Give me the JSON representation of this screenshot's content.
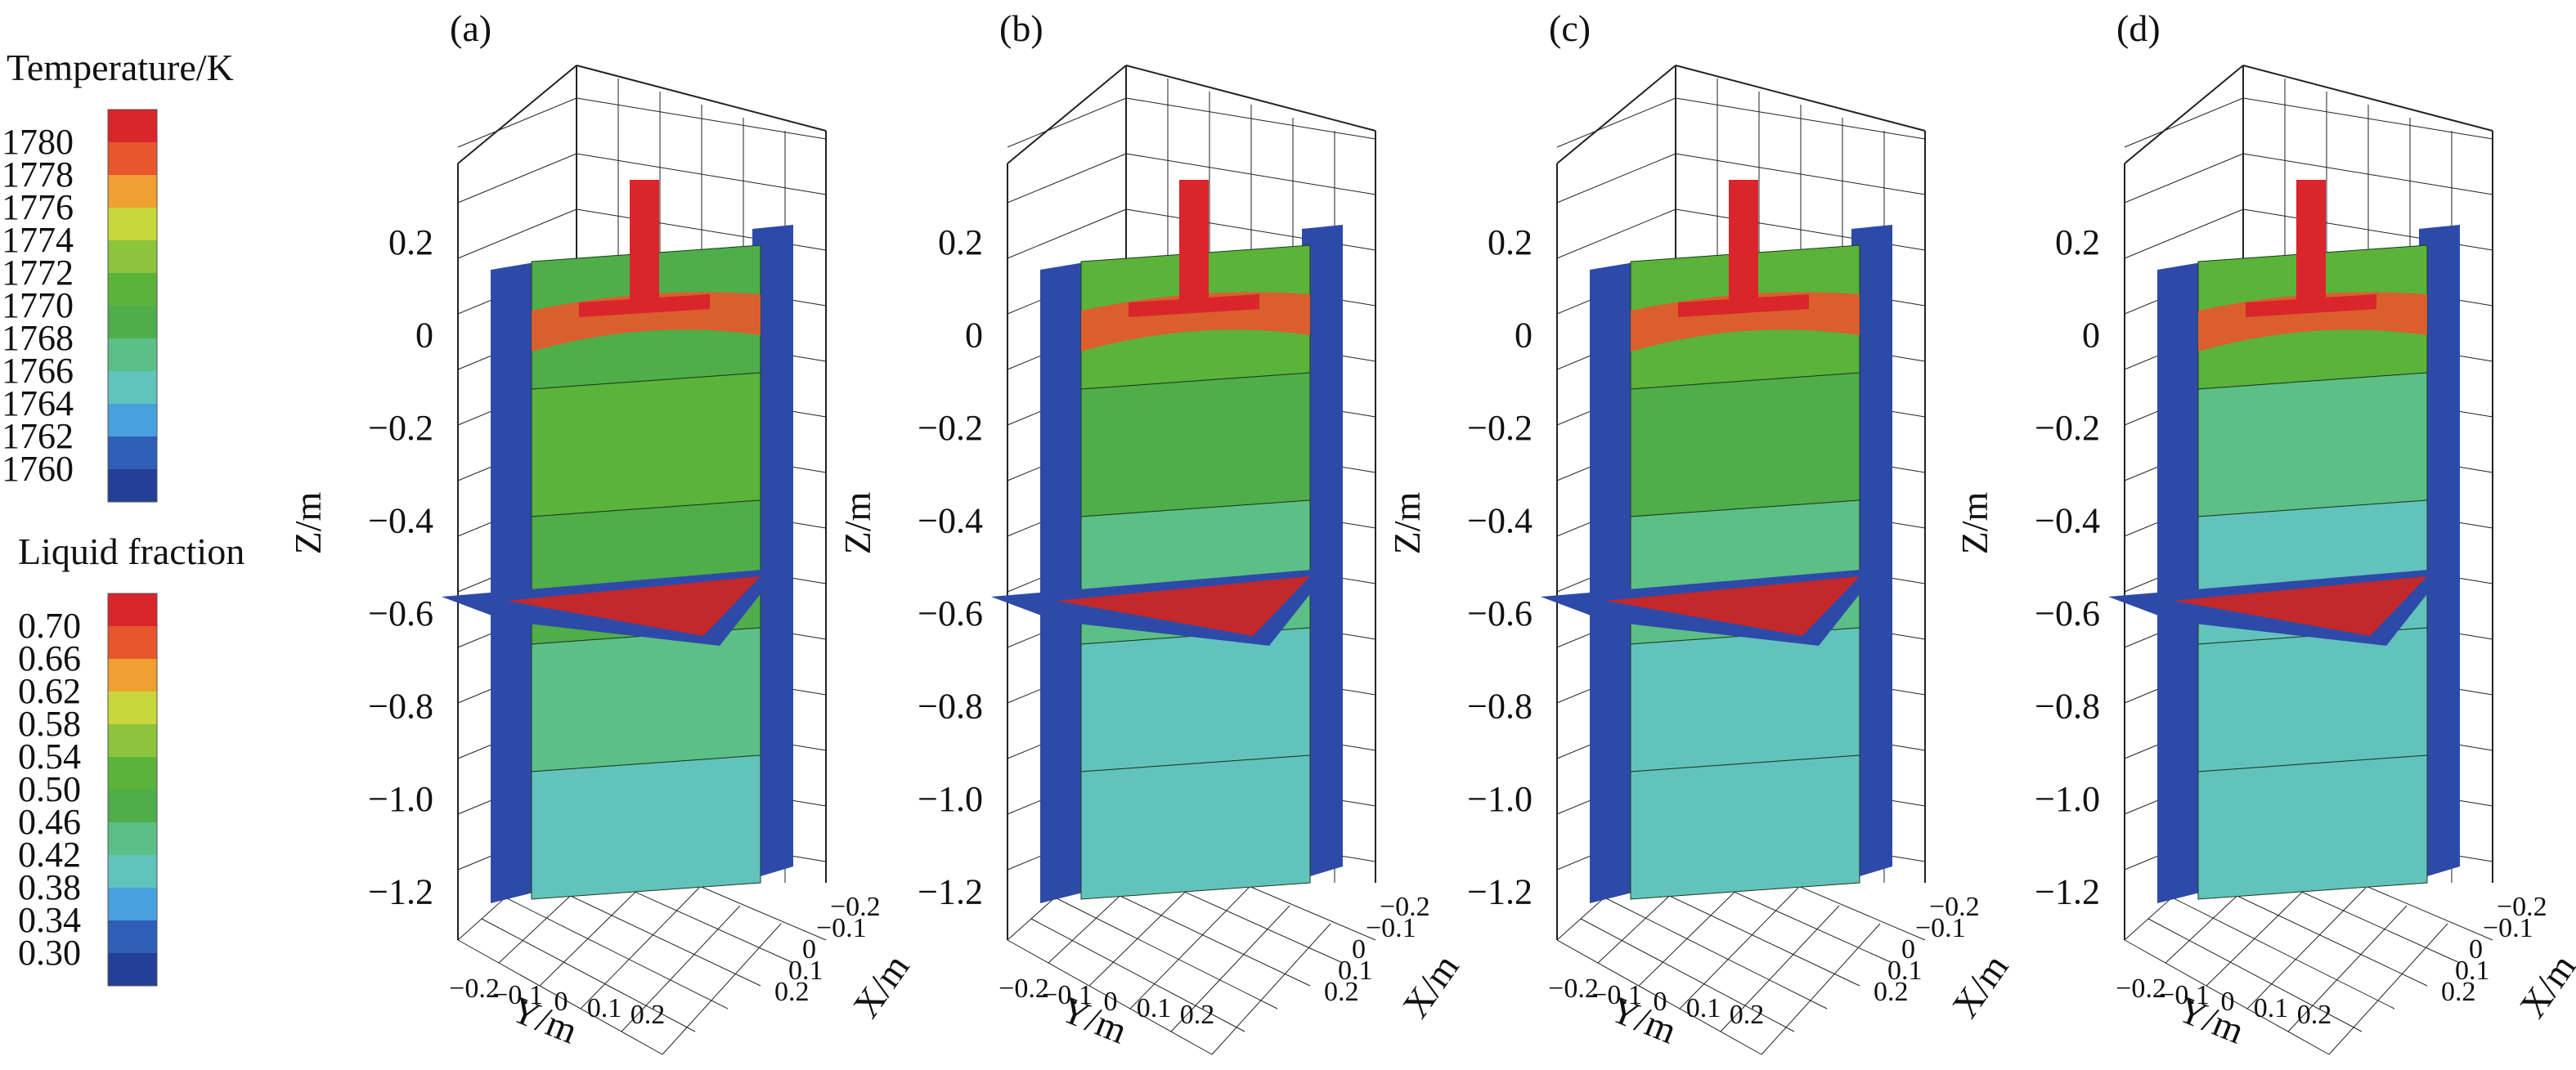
{
  "legends": {
    "temperature": {
      "title": "Temperature/K",
      "labels": [
        "1780",
        "1778",
        "1776",
        "1774",
        "1772",
        "1770",
        "1768",
        "1766",
        "1764",
        "1762",
        "1760"
      ],
      "colors": [
        "#d9252b",
        "#e8562c",
        "#f0a030",
        "#c8d83c",
        "#8cc43c",
        "#5bb33a",
        "#4fae4a",
        "#5cbf86",
        "#62c3bd",
        "#4aa0dc",
        "#2f5eb6",
        "#243f96"
      ]
    },
    "liquid_fraction": {
      "title": "Liquid fraction",
      "labels": [
        "0.70",
        "0.66",
        "0.62",
        "0.58",
        "0.54",
        "0.50",
        "0.46",
        "0.42",
        "0.38",
        "0.34",
        "0.30"
      ],
      "colors": [
        "#d9252b",
        "#e8562c",
        "#f0a030",
        "#c8d83c",
        "#8cc43c",
        "#5bb33a",
        "#4fae4a",
        "#5cbf86",
        "#62c3bd",
        "#4aa0dc",
        "#2f5eb6",
        "#243f96"
      ]
    }
  },
  "axis_labels": {
    "z": "Z/m",
    "y": "Y/m",
    "x": "X/m"
  },
  "panels": [
    {
      "label": "(a)",
      "z_ticks": [
        "0.2",
        "0",
        "−0.2",
        "−0.4",
        "−0.6",
        "−0.8",
        "−1.0",
        "−1.2"
      ],
      "y_ticks": [
        "−0.2",
        "−0.1",
        "0",
        "0.1",
        "0.2"
      ],
      "x_ticks": [
        "−0.2",
        "−0.1",
        "0",
        "0.1",
        "0.2"
      ],
      "bands": [
        "#4fae4a",
        "#5bb33a",
        "#4fae4a",
        "#5cbf86",
        "#62c3bd"
      ]
    },
    {
      "label": "(b)",
      "z_ticks": [
        "0.2",
        "0",
        "−0.2",
        "−0.4",
        "−0.6",
        "−0.8",
        "−1.0",
        "−1.2"
      ],
      "y_ticks": [
        "−0.2",
        "−0.1",
        "0",
        "0.1",
        "0.2"
      ],
      "x_ticks": [
        "−0.2",
        "−0.1",
        "0",
        "0.1",
        "0.2"
      ],
      "bands": [
        "#5bb33a",
        "#4fae4a",
        "#5cbf86",
        "#62c3bd",
        "#62c3bd"
      ]
    },
    {
      "label": "(c)",
      "z_ticks": [
        "0.2",
        "0",
        "−0.2",
        "−0.4",
        "−0.6",
        "−0.8",
        "−1.0",
        "−1.2"
      ],
      "y_ticks": [
        "−0.2",
        "−0.1",
        "0",
        "0.1",
        "0.2"
      ],
      "x_ticks": [
        "−0.2",
        "−0.1",
        "0",
        "0.1",
        "0.2"
      ],
      "bands": [
        "#5bb33a",
        "#4fae4a",
        "#5cbf86",
        "#62c3bd",
        "#62c3bd"
      ]
    },
    {
      "label": "(d)",
      "z_ticks": [
        "0.2",
        "0",
        "−0.2",
        "−0.4",
        "−0.6",
        "−0.8",
        "−1.0",
        "−1.2"
      ],
      "y_ticks": [
        "−0.2",
        "−0.1",
        "0",
        "0.1",
        "0.2"
      ],
      "x_ticks": [
        "−0.2",
        "−0.1",
        "0",
        "0.1",
        "0.2"
      ],
      "bands": [
        "#5bb33a",
        "#5cbf86",
        "#62c3bd",
        "#62c3bd",
        "#62c3bd"
      ]
    }
  ],
  "chart_data": [
    {
      "type": "heatmap",
      "title": "(a)",
      "zlabel": "Z/m",
      "ylabel": "Y/m",
      "xlabel": "X/m",
      "zlim": [
        -1.35,
        0.35
      ],
      "ylim": [
        -0.2,
        0.2
      ],
      "xlim": [
        -0.2,
        0.2
      ],
      "z_ticks": [
        0.2,
        0,
        -0.2,
        -0.4,
        -0.6,
        -0.8,
        -1.0,
        -1.2
      ],
      "scales": {
        "temperature_K": [
          1760,
          1780
        ],
        "liquid_fraction": [
          0.3,
          0.7
        ]
      }
    },
    {
      "type": "heatmap",
      "title": "(b)",
      "zlabel": "Z/m",
      "ylabel": "Y/m",
      "xlabel": "X/m",
      "zlim": [
        -1.35,
        0.35
      ],
      "ylim": [
        -0.2,
        0.2
      ],
      "xlim": [
        -0.2,
        0.2
      ],
      "z_ticks": [
        0.2,
        0,
        -0.2,
        -0.4,
        -0.6,
        -0.8,
        -1.0,
        -1.2
      ],
      "scales": {
        "temperature_K": [
          1760,
          1780
        ],
        "liquid_fraction": [
          0.3,
          0.7
        ]
      }
    },
    {
      "type": "heatmap",
      "title": "(c)",
      "zlabel": "Z/m",
      "ylabel": "Y/m",
      "xlabel": "X/m",
      "zlim": [
        -1.35,
        0.35
      ],
      "ylim": [
        -0.2,
        0.2
      ],
      "xlim": [
        -0.2,
        0.2
      ],
      "z_ticks": [
        0.2,
        0,
        -0.2,
        -0.4,
        -0.6,
        -0.8,
        -1.0,
        -1.2
      ],
      "scales": {
        "temperature_K": [
          1760,
          1780
        ],
        "liquid_fraction": [
          0.3,
          0.7
        ]
      }
    },
    {
      "type": "heatmap",
      "title": "(d)",
      "zlabel": "Z/m",
      "ylabel": "Y/m",
      "xlabel": "X/m",
      "zlim": [
        -1.35,
        0.35
      ],
      "ylim": [
        -0.2,
        0.2
      ],
      "xlim": [
        -0.2,
        0.2
      ],
      "z_ticks": [
        0.2,
        0,
        -0.2,
        -0.4,
        -0.6,
        -0.8,
        -1.0,
        -1.2
      ],
      "scales": {
        "temperature_K": [
          1760,
          1780
        ],
        "liquid_fraction": [
          0.3,
          0.7
        ]
      }
    }
  ]
}
